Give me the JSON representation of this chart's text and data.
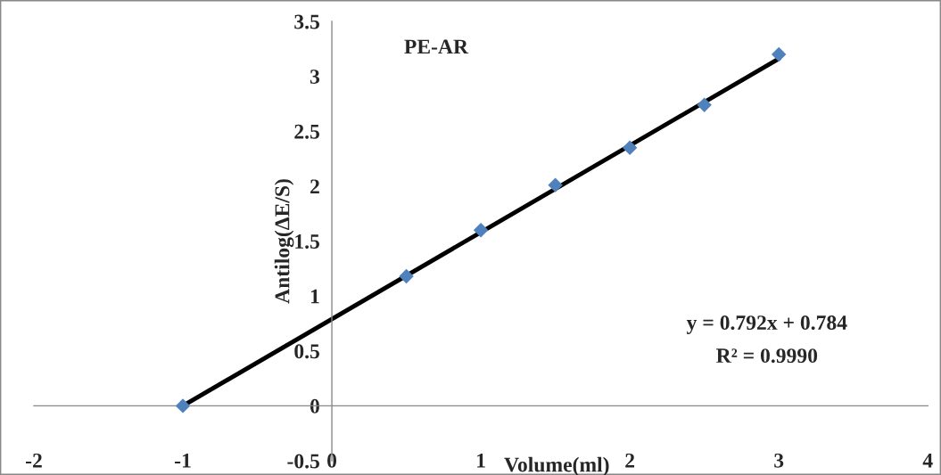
{
  "chart_data": {
    "type": "scatter",
    "title": "PE-AR",
    "xlabel": "Volume(ml)",
    "ylabel": "Antilog(ΔE/S)",
    "x": [
      -1,
      0.5,
      1,
      1.5,
      2,
      2.5,
      3
    ],
    "series": [
      {
        "color": "#4f81bd",
        "marker": "diamond",
        "values": [
          0,
          1.18,
          1.6,
          2.01,
          2.35,
          2.74,
          3.2
        ]
      },
      {
        "type": "line",
        "color": "#000000",
        "x": [
          -1,
          3
        ],
        "values": [
          0,
          3.16
        ],
        "marker": "none",
        "line_style": "solid"
      }
    ],
    "annotations": [
      "y = 0.792x + 0.784",
      "R² = 0.9990"
    ],
    "xlim": [
      -2,
      4
    ],
    "xticks": [
      -2,
      -1,
      0,
      1,
      2,
      3,
      4
    ],
    "ylim": [
      -0.5,
      3.5
    ],
    "yticks": [
      -0.5,
      0,
      0.5,
      1,
      1.5,
      2,
      2.5,
      3,
      3.5
    ],
    "grid": false,
    "legend": false
  }
}
